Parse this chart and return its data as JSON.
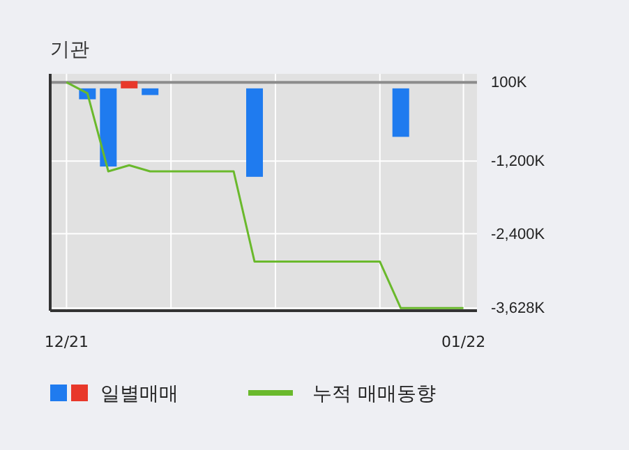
{
  "chart_data": {
    "type": "bar",
    "title": "기관",
    "categories": [
      "12/21",
      null,
      null,
      null,
      null,
      null,
      null,
      null,
      null,
      null,
      null,
      null,
      null,
      null,
      null,
      null,
      null,
      null,
      null,
      "01/22"
    ],
    "series": [
      {
        "name": "일별매매",
        "type": "bar",
        "colors": [
          null,
          "#1f7bef",
          "#1f7bef",
          "#e8382a",
          "#1f7bef",
          null,
          null,
          null,
          null,
          "#1f7bef",
          null,
          null,
          null,
          null,
          null,
          null,
          "#1f7bef",
          null,
          null,
          null
        ],
        "values": [
          null,
          -180,
          -1290,
          120,
          -110,
          null,
          null,
          null,
          null,
          -1460,
          null,
          null,
          null,
          null,
          null,
          null,
          -800,
          null,
          null,
          null
        ]
      },
      {
        "name": "누적 매매동향",
        "type": "line",
        "color": "#6ab92c",
        "values": [
          100,
          -80,
          -1370,
          -1270,
          -1370,
          -1370,
          -1370,
          -1370,
          -1370,
          -2860,
          -2860,
          -2860,
          -2860,
          -2860,
          -2860,
          -2860,
          -3628,
          -3628,
          -3628,
          -3628
        ]
      }
    ],
    "ref_lines": [
      {
        "axis": "y",
        "value": 100,
        "color": "#8c8c8c"
      }
    ],
    "ylim": [
      -3670,
      240
    ],
    "yticks": [
      {
        "value": 100,
        "label": "100K"
      },
      {
        "value": -1200,
        "label": "-1,200K"
      },
      {
        "value": -2400,
        "label": "-2,400K"
      },
      {
        "value": -3628,
        "label": "-3,628K"
      }
    ],
    "grid": true,
    "legend": "bottom"
  }
}
